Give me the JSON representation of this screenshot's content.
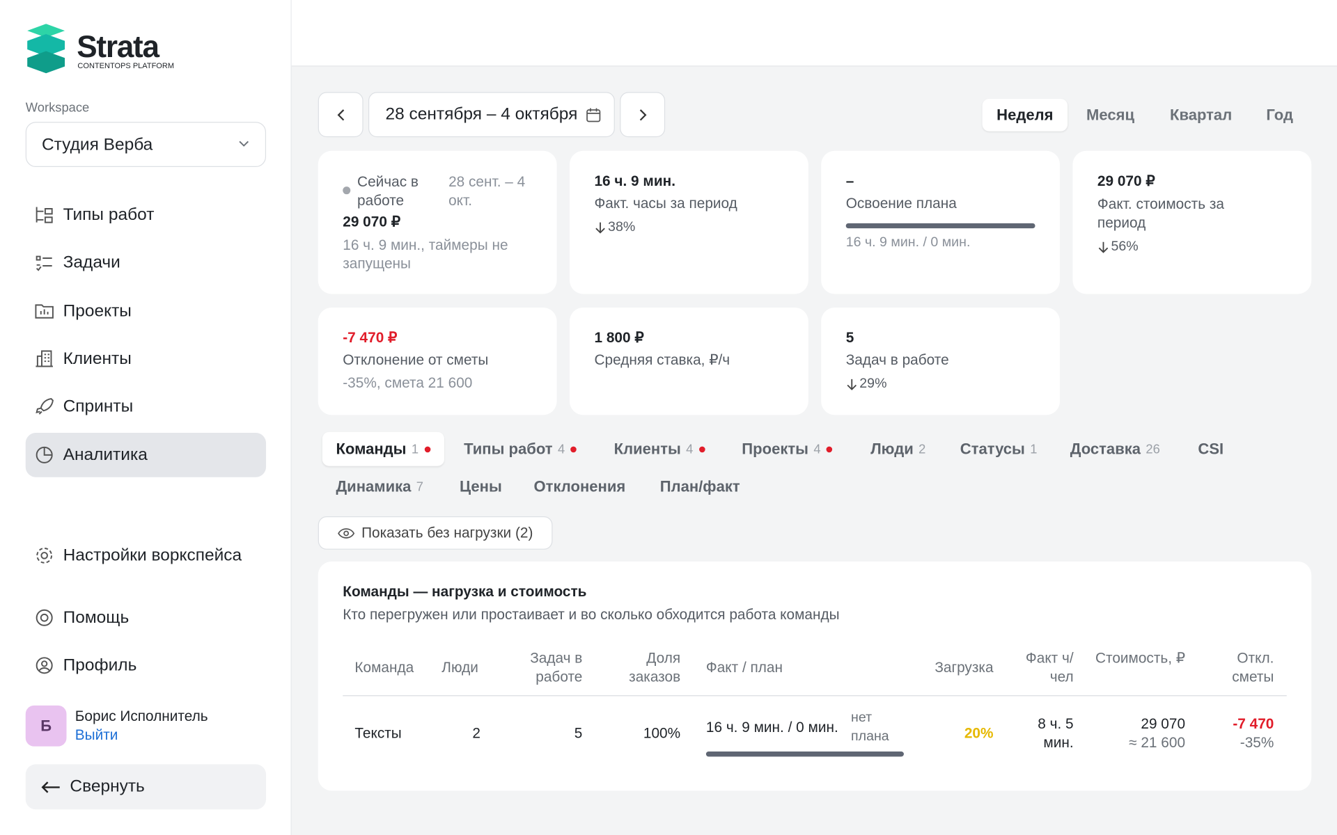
{
  "sidebar": {
    "logo": {
      "name": "Strata",
      "tagline": "CONTENTOPS PLATFORM"
    },
    "workspace_label": "Workspace",
    "workspace": "Студия Верба",
    "nav": [
      "Типы работ",
      "Задачи",
      "Проекты",
      "Клиенты",
      "Спринты",
      "Аналитика"
    ],
    "settings": "Настройки воркспейса",
    "help": "Помощь",
    "profile": "Профиль",
    "user": {
      "initial": "Б",
      "name": "Борис Исполнитель",
      "logout": "Выйти"
    },
    "collapse": "Свернуть"
  },
  "toolbar": {
    "date_range": "28 сентября – 4 октября",
    "periods": [
      "Неделя",
      "Месяц",
      "Квартал",
      "Год"
    ]
  },
  "cards": [
    {
      "status": "Сейчас в работе",
      "period": "28 сент. – 4 окт.",
      "value": "29 070 ₽",
      "note": "16 ч. 9 мин., таймеры не запущены"
    },
    {
      "value": "16 ч. 9 мин.",
      "label": "Факт. часы за период",
      "delta": "38%"
    },
    {
      "value": "–",
      "label": "Освоение плана",
      "note": "16 ч. 9 мин. / 0 мин."
    },
    {
      "value": "29 070 ₽",
      "label": "Факт. стоимость за период",
      "delta": "56%"
    },
    {
      "value": "-7 470 ₽",
      "label": "Отклонение от сметы",
      "note": "-35%, смета 21 600"
    },
    {
      "value": "1 800 ₽",
      "label": "Средняя ставка, ₽/ч"
    },
    {
      "value": "5",
      "label": "Задач в работе",
      "delta": "29%"
    }
  ],
  "tabs": [
    {
      "label": "Команды",
      "count": "1",
      "dot": true
    },
    {
      "label": "Типы работ",
      "count": "4",
      "dot": true
    },
    {
      "label": "Клиенты",
      "count": "4",
      "dot": true
    },
    {
      "label": "Проекты",
      "count": "4",
      "dot": true
    },
    {
      "label": "Люди",
      "count": "2"
    },
    {
      "label": "Статусы",
      "count": "1"
    },
    {
      "label": "Доставка",
      "count": "26"
    },
    {
      "label": "CSI"
    },
    {
      "label": "Динамика",
      "count": "7"
    },
    {
      "label": "Цены"
    },
    {
      "label": "Отклонения"
    },
    {
      "label": "План/факт"
    }
  ],
  "toggle": "Показать без нагрузки (2)",
  "table": {
    "title": "Команды — нагрузка и стоимость",
    "subtitle": "Кто перегружен или простаивает и во сколько обходится работа команды",
    "headers": [
      "Команда",
      "Люди",
      "Задач в работе",
      "Доля заказов",
      "Факт / план",
      "Загрузка",
      "Факт ч/чел",
      "Стоимость, ₽",
      "Откл. сметы"
    ],
    "rows": [
      [
        "Тексты",
        "2",
        "5",
        "100%",
        "16 ч. 9 мин. / 0 мин.",
        "нет плана",
        "20%",
        "8 ч. 5 мин.",
        "29 070",
        "≈ 21 600",
        "-7 470",
        "-35%"
      ]
    ]
  }
}
